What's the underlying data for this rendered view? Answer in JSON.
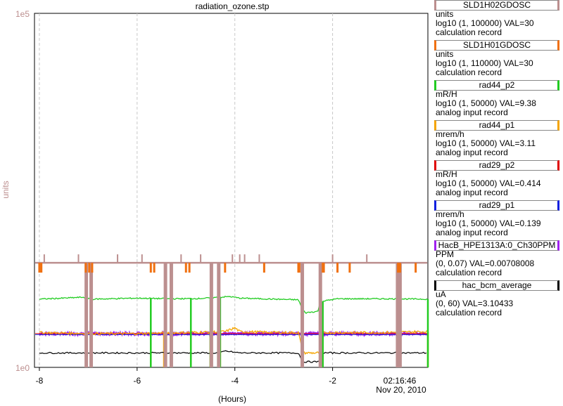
{
  "chart_data": {
    "type": "line",
    "title": "radiation_ozone.stp",
    "xlabel": "(Hours)",
    "ylabel": "units",
    "yscale": "log",
    "ylim": [
      1,
      100000
    ],
    "y_top_label": "1e5",
    "y_bottom_label": "1e0",
    "xlim": [
      -8.1,
      -0.05
    ],
    "x_ticks": [
      -8,
      -6,
      -4,
      -2
    ],
    "x_tick_labels": [
      "-8",
      "-6",
      "-4",
      "-2"
    ],
    "end_time": "02:16:46",
    "end_date": "Nov 20, 2010",
    "grid": true,
    "colors": {
      "sld2": "#bc8f8f",
      "sld1": "#f07010",
      "rad44_p2": "#22cc22",
      "rad44_p1": "#f5a500",
      "rad29_p2": "#e00000",
      "rad29_p1": "#1020e0",
      "hac": "#a020f0",
      "bcm": "#000000",
      "ylabel": "#bc8f8f"
    },
    "series": [
      {
        "name": "SLD1H02GDOSC",
        "color": "#bc8f8f",
        "baseline": 30,
        "spike_low": 1,
        "spike_times": [
          -7.04,
          -6.94,
          -5.42,
          -5.3,
          -4.48,
          -4.33,
          -2.62,
          -2.25,
          -0.67,
          -0.62
        ]
      },
      {
        "name": "SLD1H01GDOSC",
        "color": "#f07010",
        "baseline": 30,
        "spike_times": [
          -8.0,
          -7.96,
          -7.05,
          -6.98,
          -6.92,
          -5.72,
          -5.65,
          -5.0,
          -4.93,
          -4.2,
          -3.4,
          -2.7,
          -2.68,
          -2.2,
          -2.18,
          -1.9,
          -1.65,
          -0.66,
          -0.62,
          -0.3
        ]
      },
      {
        "name": "rad44_p2",
        "color": "#22cc22",
        "x": [
          -8.0,
          -7.5,
          -7.1,
          -6.9,
          -6.0,
          -5.3,
          -4.7,
          -4.1,
          -3.9,
          -3.2,
          -2.7,
          -2.62,
          -2.55,
          -2.3,
          -2.25,
          -1.9,
          -1.0,
          -0.05
        ],
        "values": [
          9.2,
          9.5,
          9.8,
          9.2,
          9.5,
          9.3,
          9.4,
          10.0,
          9.5,
          9.2,
          9.0,
          6.5,
          5.9,
          6.2,
          8.5,
          9.3,
          9.3,
          9.2
        ],
        "dropouts": [
          -7.04,
          -5.72,
          -5.42,
          -4.9,
          -4.5,
          -4.3,
          -2.2,
          -0.05
        ]
      },
      {
        "name": "rad44_p1",
        "color": "#f5a500",
        "x": [
          -8.0,
          -7.0,
          -6.0,
          -5.0,
          -4.2,
          -4.0,
          -3.9,
          -3.0,
          -2.7,
          -2.62,
          -2.25,
          -2.2,
          -1.0,
          -0.05
        ],
        "values": [
          3.1,
          3.0,
          3.0,
          3.1,
          3.2,
          3.6,
          3.2,
          3.1,
          3.1,
          1.6,
          1.6,
          3.1,
          3.1,
          3.2
        ],
        "dropouts": [
          -7.04,
          -5.72,
          -5.45,
          -4.9,
          -4.5,
          -4.3,
          -2.2,
          -0.66,
          -0.05
        ]
      },
      {
        "name": "rad29_p2",
        "color": "#e00000",
        "baseline": 3.0
      },
      {
        "name": "rad29_p1",
        "color": "#1020e0",
        "baseline": 2.9
      },
      {
        "name": "HacB_HPE1313A:0_Ch30PPM",
        "color": "#a020f0",
        "baseline": 3.0,
        "noise": true
      },
      {
        "name": "hac_bcm_average",
        "color": "#000000",
        "x": [
          -8.0,
          -7.0,
          -6.0,
          -5.0,
          -4.3,
          -4.2,
          -3.9,
          -3.0,
          -2.7,
          -2.62,
          -2.25,
          -2.2,
          -1.0,
          -0.05
        ],
        "values": [
          1.6,
          1.6,
          1.6,
          1.6,
          1.6,
          1.7,
          1.6,
          1.6,
          1.6,
          1.2,
          1.2,
          1.6,
          1.6,
          1.6
        ]
      }
    ]
  },
  "legend": [
    {
      "name": "SLD1H02GDOSC",
      "units": "units",
      "range_val": "log10 (1, 100000) VAL=30",
      "record": "calculation record",
      "color": "#bc8f8f"
    },
    {
      "name": "SLD1H01GDOSC",
      "units": "units",
      "range_val": "log10 (1, 110000) VAL=30",
      "record": "calculation record",
      "color": "#f07010"
    },
    {
      "name": "rad44_p2",
      "units": "mR/H",
      "range_val": "log10 (1, 50000) VAL=9.38",
      "record": "analog input record",
      "color": "#22cc22"
    },
    {
      "name": "rad44_p1",
      "units": "mrem/h",
      "range_val": "log10 (1, 50000) VAL=3.11",
      "record": "analog input record",
      "color": "#f5a500"
    },
    {
      "name": "rad29_p2",
      "units": "mR/H",
      "range_val": "log10 (1, 50000) VAL=0.414",
      "record": "analog input record",
      "color": "#e00000"
    },
    {
      "name": "rad29_p1",
      "units": "mrem/h",
      "range_val": "log10 (1, 50000) VAL=0.139",
      "record": "analog input record",
      "color": "#1020e0"
    },
    {
      "name": "HacB_HPE1313A:0_Ch30PPM",
      "units": "PPM",
      "range_val": "(0, 0.07) VAL=0.00708008",
      "record": "calculation record",
      "color": "#a020f0"
    },
    {
      "name": "hac_bcm_average",
      "units": "uA",
      "range_val": "(0, 60) VAL=3.10433",
      "record": "calculation record",
      "color": "#000000"
    }
  ]
}
